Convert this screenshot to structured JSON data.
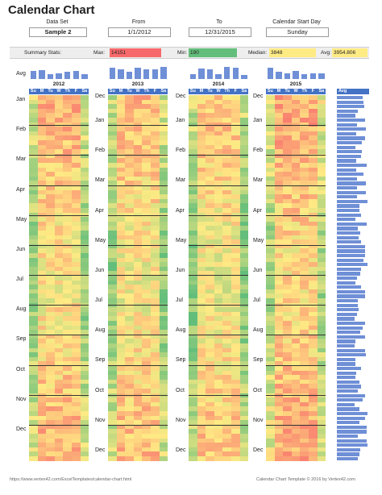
{
  "title": "Calendar Chart",
  "header": {
    "data_set_label": "Data Set",
    "data_set_value": "Sample 2",
    "from_label": "From",
    "from_value": "1/1/2012",
    "to_label": "To",
    "to_value": "12/31/2015",
    "start_day_label": "Calendar Start Day",
    "start_day_value": "Sunday"
  },
  "stats": {
    "label": "Summary Stats:",
    "max_label": "Max:",
    "max_value": "14151",
    "min_label": "Min:",
    "min_value": "190",
    "median_label": "Median:",
    "median_value": "3848",
    "avg_label": "Avg:",
    "avg_value": "3954.806",
    "colors": {
      "max": "#f8696b",
      "min": "#63be7b",
      "median": "#ffeb84",
      "avg": "#ffeb84"
    }
  },
  "avg_row_label": "Avg",
  "avg_col_label": "Avg",
  "years": [
    "2012",
    "2013",
    "2014",
    "2015"
  ],
  "weekdays": [
    "Su",
    "M",
    "Tu",
    "W",
    "Th",
    "F",
    "Sa"
  ],
  "month_columns": [
    [
      "Jan",
      "Feb",
      "Mar",
      "Apr",
      "May",
      "Jun",
      "Jul",
      "Aug",
      "Sep",
      "Oct",
      "Nov",
      "Dec"
    ],
    [
      "Dec",
      "Jan",
      "Feb",
      "Mar",
      "Apr",
      "May",
      "Jun",
      "Jul",
      "Aug",
      "Sep",
      "Oct",
      "Nov",
      "Dec"
    ],
    [
      "Dec",
      "Jan",
      "Feb",
      "Mar",
      "Apr",
      "May",
      "Jun",
      "Jul",
      "Aug",
      "Sep",
      "Oct",
      "Nov",
      "Dec"
    ],
    [
      "Dec",
      "Jan",
      "Feb",
      "Mar",
      "Apr",
      "May",
      "Jun",
      "Jul",
      "Aug",
      "Sep",
      "Oct",
      "Nov",
      "Dec"
    ]
  ],
  "footer_left": "https://www.vertex42.com/ExcelTemplates/calendar-chart.html",
  "footer_right": "Calendar Chart Template © 2016 by Vertex42.com",
  "scale_colors": {
    "low": "#63be7b",
    "mid": "#ffeb84",
    "high": "#f8696b",
    "bar": "#6f8fd6",
    "header": "#4472c4"
  }
}
